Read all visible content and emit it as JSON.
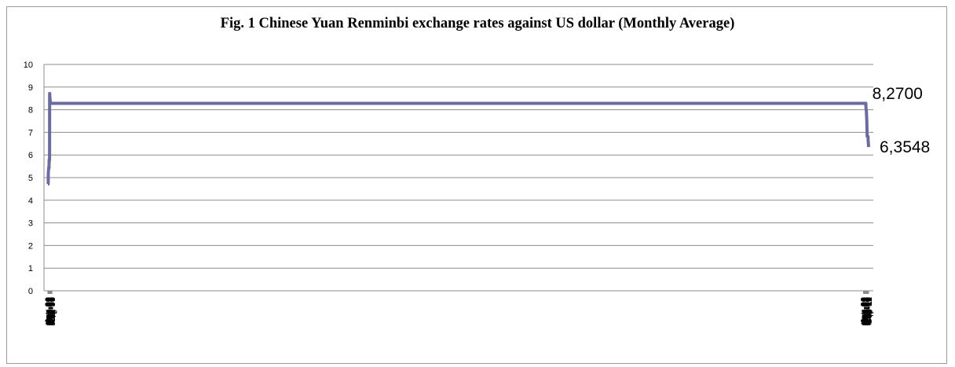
{
  "chart_data": {
    "type": "line",
    "title": "Fig. 1  Chinese Yuan Renminbi exchange rates against US dollar (Monthly Average)",
    "ylim": [
      0,
      10
    ],
    "yticks": [
      0,
      1,
      2,
      3,
      4,
      5,
      6,
      7,
      8,
      9,
      10
    ],
    "grid": "horizontal",
    "line_color": "#6b6b9f",
    "xtick_labels": [
      "Jan-90",
      "Jun-90",
      "Nov-90",
      "Apr-91",
      "Sep-91",
      "Feb-92",
      "Jul-92",
      "Dec-92",
      "May-93",
      "Oct-93",
      "Mar-94",
      "Aug-94",
      "Jan-95",
      "Jun-95",
      "Nov-95",
      "Apr-96",
      "Sep-96",
      "Feb-97",
      "Jul-97",
      "Dec-97",
      "May-98",
      "Oct-98",
      "Mar-99",
      "Aug-99",
      "Jan-00",
      "Jun-00",
      "Nov-00",
      "Apr-01",
      "Sep-01",
      "Feb-02",
      "Jul-02",
      "Dec-02",
      "May-03",
      "Oct-03",
      "Mar-04",
      "Aug-04",
      "Jan-05",
      "Jun-05",
      "Nov-05",
      "Apr-06",
      "Sep-06",
      "Feb-07",
      "Jul-07",
      "Dec-07",
      "May-08",
      "Oct-08",
      "Mar-09",
      "Aug-09",
      "Jan-10",
      "Jun-10",
      "Nov-10",
      "Apr-11",
      "Sep-11"
    ],
    "points": [
      [
        "Jan-90",
        4.72
      ],
      [
        "Jun-90",
        4.72
      ],
      [
        "Oct-90",
        4.72
      ],
      [
        "Nov-90",
        5.22
      ],
      [
        "Feb-91",
        5.22
      ],
      [
        "Apr-91",
        5.3
      ],
      [
        "Jun-91",
        5.35
      ],
      [
        "Sep-91",
        5.37
      ],
      [
        "Dec-91",
        5.4
      ],
      [
        "Feb-92",
        5.45
      ],
      [
        "Jul-92",
        5.5
      ],
      [
        "Sep-92",
        5.42
      ],
      [
        "Nov-92",
        5.6
      ],
      [
        "Dec-92",
        5.79
      ],
      [
        "Feb-93",
        5.77
      ],
      [
        "Mar-93",
        5.72
      ],
      [
        "May-93",
        5.72
      ],
      [
        "Aug-93",
        5.78
      ],
      [
        "Dec-93",
        5.8
      ],
      [
        "Jan-94",
        8.7
      ],
      [
        "Mar-94",
        8.72
      ],
      [
        "Jun-94",
        8.63
      ],
      [
        "Aug-94",
        8.55
      ],
      [
        "Oct-94",
        8.52
      ],
      [
        "Jan-95",
        8.44
      ],
      [
        "Apr-95",
        8.43
      ],
      [
        "Jun-95",
        8.3
      ],
      [
        "Aug-95",
        8.32
      ],
      [
        "Nov-95",
        8.32
      ],
      [
        "Feb-96",
        8.31
      ],
      [
        "Apr-96",
        8.33
      ],
      [
        "Sep-96",
        8.3
      ],
      [
        "Dec-96",
        8.29
      ],
      [
        "Feb-97",
        8.28
      ],
      [
        "Jul-97",
        8.28
      ],
      [
        "Jun-05",
        8.28
      ],
      [
        "Jul-05",
        8.23
      ],
      [
        "Aug-05",
        8.1
      ],
      [
        "Nov-05",
        8.08
      ],
      [
        "Apr-06",
        8.0
      ],
      [
        "Sep-06",
        7.97
      ],
      [
        "Feb-07",
        7.76
      ],
      [
        "Apr-07",
        7.72
      ],
      [
        "Jul-07",
        7.58
      ],
      [
        "Sep-07",
        7.52
      ],
      [
        "Dec-07",
        7.38
      ],
      [
        "Mar-08",
        7.05
      ],
      [
        "May-08",
        6.95
      ],
      [
        "Jul-08",
        6.83
      ],
      [
        "Oct-08",
        6.83
      ],
      [
        "Mar-09",
        6.83
      ],
      [
        "Aug-09",
        6.83
      ],
      [
        "Jan-10",
        6.83
      ],
      [
        "Jun-10",
        6.82
      ],
      [
        "Aug-10",
        6.78
      ],
      [
        "Oct-10",
        6.66
      ],
      [
        "Nov-10",
        6.66
      ],
      [
        "Jan-11",
        6.6
      ],
      [
        "Apr-11",
        6.55
      ],
      [
        "Jul-11",
        6.47
      ],
      [
        "Sep-11",
        6.4
      ],
      [
        "Dec-11",
        6.35
      ]
    ],
    "annotations": [
      {
        "text": "8,2700",
        "at": "Sep-05"
      },
      {
        "text": "6,3548",
        "at": "Dec-11"
      }
    ]
  }
}
